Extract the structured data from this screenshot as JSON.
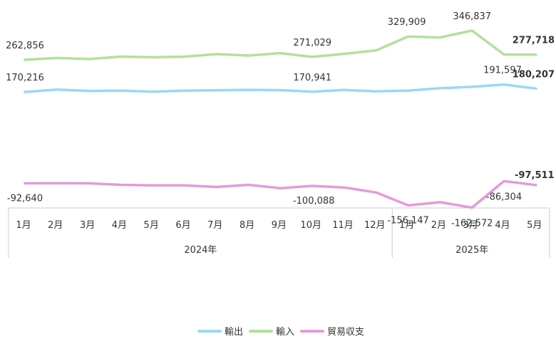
{
  "chart_data": {
    "type": "line",
    "categories": [
      "1月",
      "2月",
      "3月",
      "4月",
      "5月",
      "6月",
      "7月",
      "8月",
      "9月",
      "10月",
      "11月",
      "12月",
      "1月",
      "2月",
      "3月",
      "4月",
      "5月"
    ],
    "year_groups": [
      {
        "label": "2024年",
        "start": 0,
        "end": 11
      },
      {
        "label": "2025年",
        "start": 12,
        "end": 16
      }
    ],
    "series": [
      {
        "name": "輸出",
        "color": "#99d9f2",
        "values": [
          170216,
          177000,
          173000,
          174000,
          171000,
          174000,
          175000,
          176500,
          175500,
          170941,
          176000,
          172000,
          174000,
          181000,
          185000,
          191597,
          180207
        ]
      },
      {
        "name": "輸入",
        "color": "#b3e09c",
        "values": [
          262856,
          268000,
          265000,
          272000,
          270000,
          272000,
          279000,
          275000,
          282000,
          271029,
          280000,
          290000,
          329909,
          327000,
          346837,
          278000,
          277718
        ]
      },
      {
        "name": "貿易収支",
        "color": "#e59ad9",
        "values": [
          -92640,
          -92500,
          -92600,
          -97000,
          -98500,
          -98500,
          -103000,
          -97000,
          -106500,
          -100088,
          -104500,
          -119000,
          -156147,
          -147000,
          -162572,
          -86304,
          -97511
        ]
      }
    ],
    "data_labels": [
      {
        "series": 1,
        "index": 0,
        "text": "262,856",
        "bold": false
      },
      {
        "series": 1,
        "index": 9,
        "text": "271,029",
        "bold": false
      },
      {
        "series": 1,
        "index": 12,
        "text": "329,909",
        "bold": false
      },
      {
        "series": 1,
        "index": 14,
        "text": "346,837",
        "bold": false
      },
      {
        "series": 1,
        "index": 16,
        "text": "277,718",
        "bold": true
      },
      {
        "series": 0,
        "index": 0,
        "text": "170,216",
        "bold": false
      },
      {
        "series": 0,
        "index": 9,
        "text": "170,941",
        "bold": false
      },
      {
        "series": 0,
        "index": 15,
        "text": "191,597",
        "bold": false
      },
      {
        "series": 0,
        "index": 16,
        "text": "180,207",
        "bold": true
      },
      {
        "series": 2,
        "index": 0,
        "text": "-92,640",
        "bold": false
      },
      {
        "series": 2,
        "index": 9,
        "text": "-100,088",
        "bold": false
      },
      {
        "series": 2,
        "index": 12,
        "text": "-156,147",
        "bold": false
      },
      {
        "series": 2,
        "index": 14,
        "text": "-162,572",
        "bold": false
      },
      {
        "series": 2,
        "index": 15,
        "text": "-86,304",
        "bold": false
      },
      {
        "series": 2,
        "index": 16,
        "text": "-97,511",
        "bold": true
      }
    ],
    "legend": [
      "輸出",
      "輸入",
      "貿易収支"
    ],
    "legend_position": "bottom",
    "grid": false,
    "ylim": [
      -180000,
      360000
    ]
  }
}
